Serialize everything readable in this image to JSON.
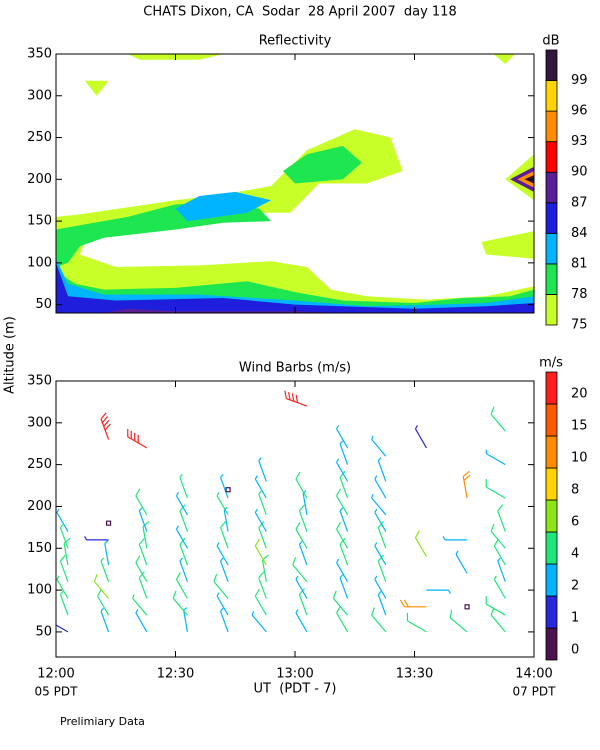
{
  "header": {
    "title": "CHATS Dixon, CA  Sodar  28 April 2007  day 118",
    "ylabel": "Altitude (m)",
    "footnote": "Prelimiary Data"
  },
  "chart_data": [
    {
      "type": "contour",
      "title": "Reflectivity",
      "xlim": [
        12,
        14
      ],
      "ylim": [
        40,
        350
      ],
      "yticks": [
        50,
        100,
        150,
        200,
        250,
        300,
        350
      ],
      "colorbar": {
        "label": "dB",
        "levels": [
          75,
          78,
          81,
          84,
          87,
          90,
          93,
          96,
          99
        ],
        "colors": [
          "#c8ff28",
          "#1ee650",
          "#00b4ff",
          "#1e1edc",
          "#5a1e96",
          "#ff0000",
          "#ff8c00",
          "#ffd200",
          "#32143c"
        ]
      },
      "regions": [
        {
          "level": 75,
          "points": [
            [
              12,
              40
            ],
            [
              12,
              155
            ],
            [
              12.1,
              158
            ],
            [
              12.5,
              175
            ],
            [
              12.7,
              182
            ],
            [
              12.9,
              192
            ],
            [
              13.05,
              235
            ],
            [
              13.25,
              260
            ],
            [
              13.4,
              250
            ],
            [
              13.45,
              210
            ],
            [
              13.3,
              195
            ],
            [
              13.1,
              195
            ],
            [
              12.98,
              160
            ],
            [
              12.7,
              160
            ],
            [
              12.5,
              150
            ],
            [
              12.2,
              135
            ],
            [
              12.12,
              125
            ],
            [
              12.1,
              110
            ],
            [
              12.25,
              95
            ],
            [
              12.6,
              97
            ],
            [
              12.9,
              102
            ],
            [
              13.05,
              95
            ],
            [
              13.15,
              68
            ],
            [
              13.3,
              60
            ],
            [
              13.55,
              56
            ],
            [
              13.8,
              60
            ],
            [
              14,
              72
            ],
            [
              14,
              40
            ]
          ]
        },
        {
          "level": 75,
          "points": [
            [
              12.3,
              350
            ],
            [
              12.35,
              343
            ],
            [
              12.6,
              343
            ],
            [
              12.7,
              350
            ]
          ]
        },
        {
          "level": 75,
          "points": [
            [
              12.12,
              318
            ],
            [
              12.22,
              318
            ],
            [
              12.17,
              300
            ]
          ]
        },
        {
          "level": 75,
          "points": [
            [
              13.83,
              350
            ],
            [
              13.88,
              338
            ],
            [
              13.92,
              350
            ]
          ]
        },
        {
          "level": 75,
          "points": [
            [
              13.78,
              125
            ],
            [
              14,
              138
            ],
            [
              14,
              105
            ],
            [
              13.8,
              110
            ]
          ]
        },
        {
          "level": 75,
          "points": [
            [
              13.88,
              200
            ],
            [
              14,
              230
            ],
            [
              14,
              175
            ]
          ]
        },
        {
          "level": 78,
          "points": [
            [
              12,
              140
            ],
            [
              12.1,
              145
            ],
            [
              12.3,
              155
            ],
            [
              12.5,
              170
            ],
            [
              12.7,
              172
            ],
            [
              12.85,
              165
            ],
            [
              12.9,
              150
            ],
            [
              12.7,
              148
            ],
            [
              12.5,
              140
            ],
            [
              12.2,
              130
            ],
            [
              12.1,
              120
            ],
            [
              12.05,
              100
            ],
            [
              12,
              95
            ]
          ]
        },
        {
          "level": 78,
          "points": [
            [
              12.95,
              210
            ],
            [
              13.05,
              230
            ],
            [
              13.2,
              240
            ],
            [
              13.28,
              220
            ],
            [
              13.2,
              200
            ],
            [
              13,
              195
            ]
          ]
        },
        {
          "level": 78,
          "points": [
            [
              12,
              40
            ],
            [
              12,
              90
            ],
            [
              12.08,
              75
            ],
            [
              12.2,
              68
            ],
            [
              12.5,
              70
            ],
            [
              12.8,
              78
            ],
            [
              13,
              65
            ],
            [
              13.2,
              55
            ],
            [
              13.5,
              52
            ],
            [
              13.7,
              58
            ],
            [
              13.9,
              60
            ],
            [
              14,
              68
            ],
            [
              14,
              40
            ]
          ]
        },
        {
          "level": 81,
          "points": [
            [
              12.5,
              165
            ],
            [
              12.6,
              180
            ],
            [
              12.75,
              185
            ],
            [
              12.9,
              175
            ],
            [
              12.8,
              160
            ],
            [
              12.55,
              150
            ]
          ]
        },
        {
          "level": 81,
          "points": [
            [
              12,
              40
            ],
            [
              12,
              105
            ],
            [
              12.05,
              75
            ],
            [
              12.2,
              62
            ],
            [
              12.6,
              62
            ],
            [
              13,
              55
            ],
            [
              13.3,
              48
            ],
            [
              13.6,
              50
            ],
            [
              13.8,
              52
            ],
            [
              14,
              60
            ],
            [
              14,
              40
            ]
          ]
        },
        {
          "level": 84,
          "points": [
            [
              12,
              40
            ],
            [
              12,
              100
            ],
            [
              12.05,
              60
            ],
            [
              12.25,
              55
            ],
            [
              12.7,
              58
            ],
            [
              13,
              50
            ],
            [
              13.5,
              45
            ],
            [
              13.8,
              48
            ],
            [
              14,
              52
            ],
            [
              14,
              40
            ]
          ]
        },
        {
          "level": 87,
          "points": [
            [
              12.2,
              40
            ],
            [
              12.3,
              45
            ],
            [
              12.5,
              42
            ],
            [
              13,
              42
            ],
            [
              13.2,
              40
            ]
          ]
        },
        {
          "level": 87,
          "points": [
            [
              13.9,
              200
            ],
            [
              14,
              215
            ],
            [
              14,
              185
            ]
          ]
        },
        {
          "level": 93,
          "points": [
            [
              13.93,
              200
            ],
            [
              14,
              210
            ],
            [
              14,
              190
            ]
          ]
        },
        {
          "level": 99,
          "points": [
            [
              13.96,
              200
            ],
            [
              14,
              205
            ],
            [
              14,
              195
            ]
          ]
        }
      ]
    },
    {
      "type": "barbs",
      "title": "Wind Barbs (m/s)",
      "xlim": [
        12,
        14
      ],
      "ylim": [
        20,
        350
      ],
      "yticks": [
        50,
        100,
        150,
        200,
        250,
        300,
        350
      ],
      "xticks": [
        {
          "value": 12,
          "label": "12:00"
        },
        {
          "value": 12.5,
          "label": "12:30"
        },
        {
          "value": 13,
          "label": "13:00"
        },
        {
          "value": 13.5,
          "label": "13:30"
        },
        {
          "value": 14,
          "label": "14:00"
        }
      ],
      "xlabel": "UT  (PDT - 7)",
      "x_start_label": "05 PDT",
      "x_end_label": "07 PDT",
      "colorbar": {
        "label": "m/s",
        "levels": [
          0,
          1,
          2,
          4,
          6,
          8,
          10,
          15,
          20
        ],
        "colors": [
          "#4b1450",
          "#2828dc",
          "#00b4ff",
          "#1ee678",
          "#8ce614",
          "#ffd200",
          "#ff8c00",
          "#ff5a00",
          "#ff1e1e"
        ]
      },
      "barbs": {
        "x": [
          12.05,
          12.05,
          12.05,
          12.05,
          12.05,
          12.05,
          12.05,
          12.22,
          12.22,
          12.22,
          12.22,
          12.22,
          12.22,
          12.22,
          12.22,
          12.38,
          12.38,
          12.38,
          12.38,
          12.38,
          12.38,
          12.38,
          12.38,
          12.38,
          12.55,
          12.55,
          12.55,
          12.55,
          12.55,
          12.55,
          12.55,
          12.55,
          12.55,
          12.72,
          12.72,
          12.72,
          12.72,
          12.72,
          12.72,
          12.72,
          12.72,
          12.72,
          12.72,
          12.88,
          12.88,
          12.88,
          12.88,
          12.88,
          12.88,
          12.88,
          12.88,
          12.88,
          12.88,
          13.05,
          13.05,
          13.05,
          13.05,
          13.05,
          13.05,
          13.05,
          13.05,
          13.05,
          13.05,
          13.22,
          13.22,
          13.22,
          13.22,
          13.22,
          13.22,
          13.22,
          13.22,
          13.22,
          13.22,
          13.22,
          13.22,
          13.38,
          13.38,
          13.38,
          13.38,
          13.38,
          13.38,
          13.38,
          13.38,
          13.38,
          13.38,
          13.38,
          13.55,
          13.55,
          13.55,
          13.55,
          13.55,
          13.72,
          13.72,
          13.72,
          13.72,
          13.72,
          13.88,
          13.88,
          13.88,
          13.88,
          13.88,
          13.88,
          13.88,
          13.88,
          13.88,
          13.88
        ],
        "y": [
          50,
          70,
          90,
          110,
          130,
          150,
          170,
          50,
          70,
          90,
          110,
          130,
          160,
          180,
          280,
          50,
          70,
          90,
          110,
          130,
          150,
          170,
          190,
          270,
          50,
          70,
          90,
          110,
          130,
          150,
          170,
          190,
          210,
          50,
          70,
          90,
          110,
          130,
          150,
          170,
          190,
          210,
          220,
          50,
          70,
          90,
          110,
          130,
          150,
          170,
          190,
          210,
          230,
          50,
          70,
          90,
          110,
          130,
          150,
          170,
          190,
          210,
          320,
          50,
          70,
          90,
          110,
          130,
          150,
          170,
          190,
          210,
          230,
          250,
          270,
          50,
          70,
          90,
          110,
          130,
          150,
          170,
          190,
          210,
          230,
          260,
          50,
          80,
          100,
          140,
          270,
          50,
          80,
          120,
          160,
          210,
          50,
          70,
          90,
          110,
          130,
          150,
          170,
          210,
          250,
          290
        ],
        "speed": [
          1.5,
          4,
          4,
          5,
          5,
          4,
          3,
          3,
          5,
          6.5,
          4,
          3,
          1.5,
          0.5,
          20,
          3,
          4,
          5,
          5,
          5,
          5,
          3,
          5,
          20,
          3,
          5,
          5,
          3,
          5,
          3,
          5,
          3,
          4,
          3,
          3,
          5,
          3,
          3,
          5,
          3,
          4,
          3,
          0.5,
          3,
          5,
          5,
          5,
          7,
          5,
          3,
          4,
          3,
          3,
          3,
          5,
          3,
          5,
          3,
          5,
          5,
          3,
          5,
          20,
          5,
          5,
          3,
          3,
          5,
          5,
          3,
          5,
          5,
          3,
          3,
          3,
          5,
          3,
          3,
          5,
          3,
          5,
          3,
          3,
          3,
          3,
          3,
          5,
          12,
          3,
          7,
          1.5,
          5,
          0.5,
          3,
          3,
          12,
          5,
          5,
          4,
          3,
          5,
          5,
          5,
          5,
          3,
          5
        ],
        "direction": [
          300,
          340,
          330,
          340,
          350,
          340,
          330,
          340,
          330,
          320,
          340,
          350,
          270,
          0,
          340,
          330,
          320,
          340,
          330,
          340,
          350,
          340,
          330,
          300,
          350,
          320,
          330,
          340,
          340,
          330,
          340,
          330,
          340,
          340,
          330,
          320,
          340,
          330,
          340,
          350,
          330,
          340,
          0,
          320,
          330,
          340,
          350,
          330,
          340,
          330,
          340,
          330,
          340,
          330,
          340,
          330,
          320,
          340,
          330,
          340,
          350,
          330,
          290,
          330,
          320,
          340,
          330,
          340,
          330,
          340,
          330,
          340,
          330,
          340,
          330,
          320,
          340,
          330,
          340,
          330,
          340,
          330,
          320,
          330,
          340,
          320,
          300,
          270,
          90,
          330,
          330,
          310,
          0,
          330,
          270,
          350,
          320,
          300,
          330,
          340,
          330,
          320,
          340,
          300,
          300,
          320
        ]
      }
    }
  ]
}
